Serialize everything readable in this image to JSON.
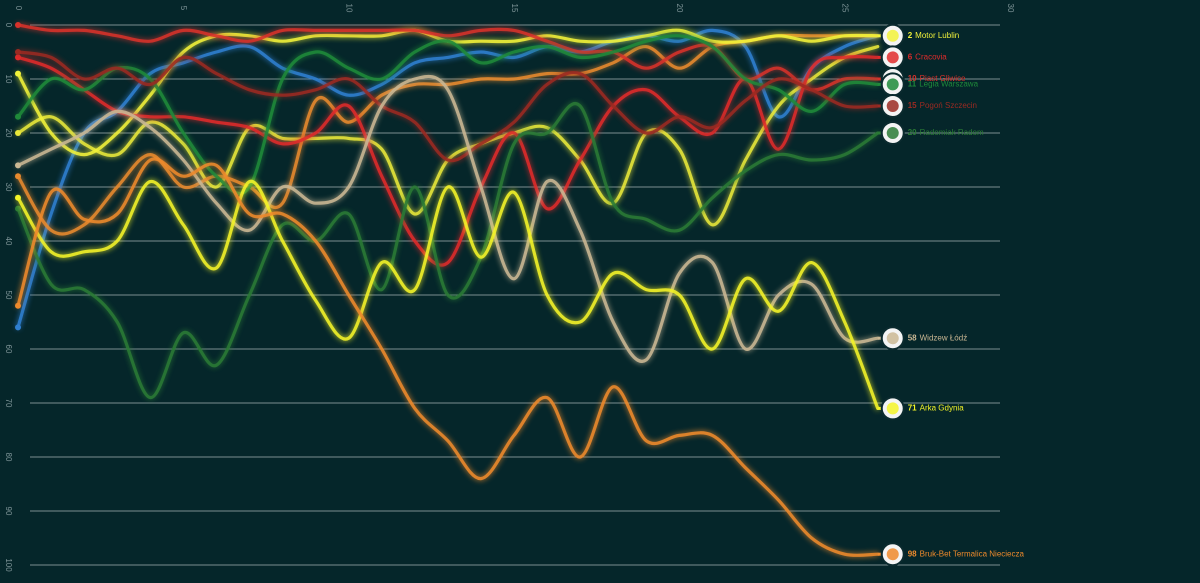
{
  "chart_data": {
    "type": "line",
    "x": [
      0,
      1,
      2,
      3,
      4,
      5,
      6,
      7,
      8,
      9,
      10,
      11,
      12,
      13,
      14,
      15,
      16,
      17,
      18,
      19,
      20,
      21,
      22,
      23,
      24,
      25,
      26
    ],
    "xlim": [
      0,
      30
    ],
    "xticks": [
      0,
      5,
      10,
      15,
      20,
      25,
      30
    ],
    "ylim": [
      0,
      100
    ],
    "yticks": [
      0,
      10,
      20,
      30,
      40,
      50,
      60,
      70,
      80,
      90,
      100
    ],
    "y_inverted": true,
    "grid": true,
    "series": [
      {
        "color": "#2f7fd0",
        "values": [
          56,
          35,
          20,
          16,
          9,
          7,
          5,
          4,
          8,
          10,
          13,
          11,
          7,
          6,
          5,
          6,
          4,
          5,
          3,
          2,
          3,
          1,
          4,
          17,
          8,
          4,
          2
        ]
      },
      {
        "color": "#e8e83a",
        "values": [
          20,
          17,
          22,
          24,
          18,
          22,
          30,
          19,
          21,
          21,
          21,
          23,
          35,
          25,
          22,
          20,
          19,
          25,
          33,
          20,
          23,
          37,
          25,
          15,
          10,
          6,
          4
        ]
      },
      {
        "color": "#e88a2e",
        "values": [
          28,
          38,
          37,
          30,
          24,
          30,
          28,
          30,
          33,
          14,
          18,
          13,
          11,
          11,
          10,
          10,
          9,
          9,
          7,
          4,
          8,
          4,
          3,
          2,
          2,
          2,
          2
        ]
      },
      {
        "name": "Motor Lublin",
        "color": "#f2f23a",
        "values": [
          9,
          20,
          24,
          20,
          13,
          5,
          2,
          2,
          3,
          2,
          2,
          2,
          1,
          3,
          3,
          3,
          2,
          3,
          3,
          2,
          1,
          3,
          3,
          2,
          3,
          2,
          2
        ]
      },
      {
        "name": "Cracovia",
        "color": "#e02b2b",
        "values": [
          6,
          8,
          12,
          16,
          17,
          17,
          18,
          19,
          22,
          20,
          15,
          28,
          40,
          44,
          30,
          20,
          34,
          25,
          15,
          12,
          17,
          20,
          10,
          23,
          8,
          6,
          6
        ]
      },
      {
        "name": "Piast Gliwice",
        "color": "#d8322b",
        "values": [
          0,
          1,
          1,
          2,
          3,
          1,
          2,
          3,
          1,
          1,
          1,
          1,
          1,
          2,
          1,
          1,
          3,
          5,
          5,
          8,
          5,
          4,
          10,
          8,
          12,
          10,
          10
        ]
      },
      {
        "name": "Legia Warszawa",
        "color": "#1f8a3a",
        "values": [
          17,
          10,
          12,
          8,
          10,
          20,
          28,
          30,
          10,
          5,
          8,
          10,
          5,
          3,
          7,
          5,
          4,
          6,
          5,
          3,
          2,
          4,
          10,
          12,
          16,
          11,
          11
        ]
      },
      {
        "name": "Pogoń Szczecin",
        "color": "#9b2a22",
        "values": [
          5,
          6,
          10,
          8,
          11,
          6,
          9,
          12,
          13,
          12,
          10,
          15,
          18,
          25,
          22,
          18,
          11,
          9,
          15,
          20,
          17,
          19,
          14,
          10,
          12,
          15,
          15
        ]
      },
      {
        "name": "Radomiak Radom",
        "color": "#2a7a35",
        "values": [
          34,
          48,
          49,
          55,
          69,
          57,
          63,
          50,
          37,
          40,
          35,
          49,
          30,
          50,
          43,
          22,
          20,
          15,
          33,
          36,
          38,
          32,
          27,
          24,
          25,
          24,
          20
        ]
      },
      {
        "name": "Widzew Łódź",
        "color": "#cbb894",
        "values": [
          26,
          23,
          20,
          16,
          19,
          25,
          33,
          38,
          30,
          33,
          30,
          15,
          10,
          12,
          30,
          47,
          29,
          38,
          55,
          62,
          46,
          44,
          60,
          50,
          48,
          58,
          58
        ]
      },
      {
        "name": "Arka Gdynia",
        "color": "#f4f428",
        "values": [
          32,
          42,
          42,
          40,
          29,
          37,
          45,
          29,
          40,
          51,
          58,
          44,
          49,
          30,
          43,
          31,
          50,
          55,
          46,
          49,
          50,
          60,
          47,
          53,
          44,
          55,
          71
        ]
      },
      {
        "name": "Bruk-Bet Termalica Nieciecza",
        "color": "#ee8a2c",
        "values": [
          52,
          31,
          36,
          35,
          25,
          28,
          26,
          35,
          35,
          40,
          50,
          60,
          71,
          77,
          84,
          76,
          69,
          80,
          67,
          77,
          76,
          76,
          82,
          88,
          95,
          98,
          98
        ]
      }
    ]
  }
}
